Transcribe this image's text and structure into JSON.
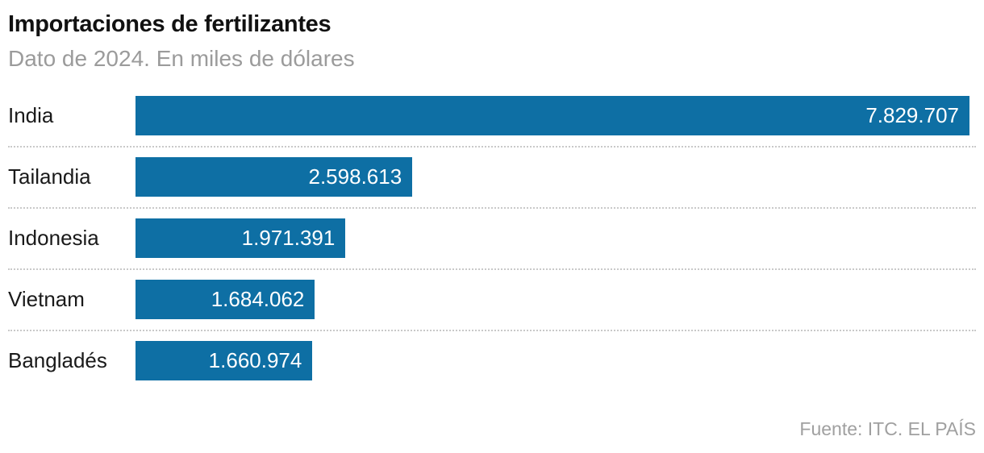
{
  "header": {
    "title": "Importaciones de fertilizantes",
    "subtitle": "Dato de 2024. En miles de dólares"
  },
  "footer": {
    "source": "Fuente: ITC. EL PAÍS"
  },
  "colors": {
    "bar": "#0e6fa4",
    "title_text": "#111111",
    "subtitle_text": "#9b9b9b",
    "category_label_text": "#1a1a1a",
    "value_label_text": "#ffffff",
    "separator": "#c9c9c9",
    "source_text": "#a0a0a0",
    "background": "#ffffff"
  },
  "chart_data": {
    "type": "bar",
    "orientation": "horizontal",
    "title": "Importaciones de fertilizantes",
    "subtitle": "Dato de 2024. En miles de dólares",
    "unit": "miles de dólares",
    "year_label": "2024",
    "categories": [
      "India",
      "Tailandia",
      "Indonesia",
      "Vietnam",
      "Bangladés"
    ],
    "values": [
      7829707,
      2598613,
      1971391,
      1684062,
      1660974
    ],
    "value_labels": [
      "7.829.707",
      "2.598.613",
      "1.971.391",
      "1.684.062",
      "1.660.974"
    ],
    "xlim": [
      0,
      7829707
    ],
    "grid": false,
    "legend": false,
    "value_label_position": "inside-right",
    "source": "Fuente: ITC. EL PAÍS"
  }
}
